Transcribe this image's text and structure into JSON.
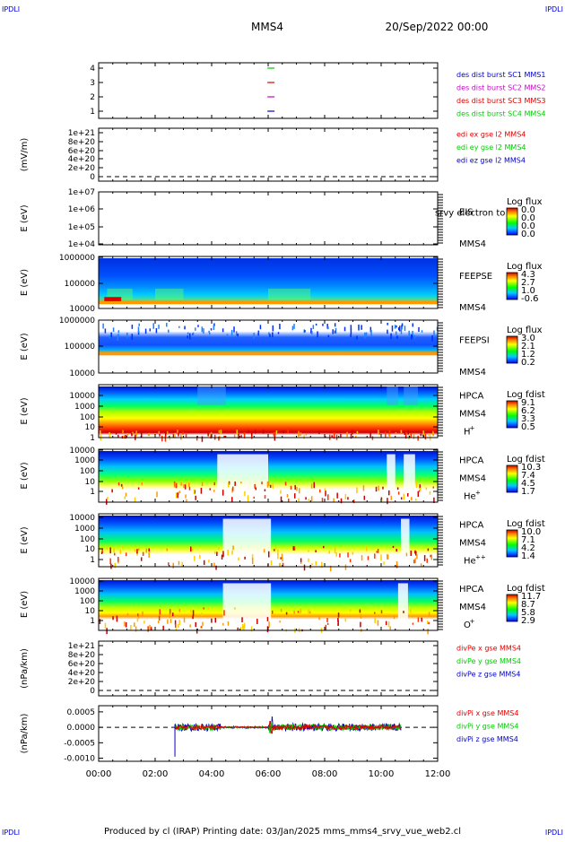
{
  "corner_label": "IPDLI",
  "header": {
    "spacecraft": "MMS4",
    "datetime": "20/Sep/2022 00:00"
  },
  "footer": {
    "text": "Produced by cl (IRAP)   Printing date: 03/Jan/2025   mms_mms4_srvy_vue_web2.cl"
  },
  "time_axis": {
    "ticks": [
      "00:00",
      "02:00",
      "04:00",
      "06:00",
      "08:00",
      "10:00",
      "12:00"
    ],
    "range_hours": [
      0,
      12
    ]
  },
  "colors": {
    "red": "#dd0000",
    "green": "#00cc00",
    "blue": "#0000cc",
    "magenta": "#cc00cc",
    "panel_border": "#000000"
  },
  "chart_data": [
    {
      "id": "burst",
      "type": "line",
      "yticks": [
        "4",
        "3",
        "2",
        "1"
      ],
      "ylabel": "",
      "legend": [
        {
          "text": "des dist burst SC1 MMS1",
          "color": "#0000cc"
        },
        {
          "text": "des dist burst SC2 MMS2",
          "color": "#cc00cc"
        },
        {
          "text": "des dist burst SC3 MMS3",
          "color": "#dd0000"
        },
        {
          "text": "des dist burst SC4 MMS4",
          "color": "#00cc00"
        }
      ],
      "markers": [
        {
          "sc": 4,
          "time_hours": 6.1,
          "color": "#00cc00"
        },
        {
          "sc": 3,
          "time_hours": 6.1,
          "color": "#dd0000"
        },
        {
          "sc": 2,
          "time_hours": 6.1,
          "color": "#cc00cc"
        },
        {
          "sc": 1,
          "time_hours": 6.1,
          "color": "#0000cc"
        }
      ]
    },
    {
      "id": "edi",
      "type": "line",
      "yticks": [
        "1e+21",
        "8e+20",
        "6e+20",
        "4e+20",
        "2e+20",
        "0"
      ],
      "ylabel": "(mV/m)",
      "legend": [
        {
          "text": "edi ex gse l2 MMS4",
          "color": "#dd0000"
        },
        {
          "text": "edi ey gse l2 MMS4",
          "color": "#00cc00"
        },
        {
          "text": "edi ez gse l2 MMS4",
          "color": "#0000cc"
        }
      ],
      "zero_line": true
    },
    {
      "id": "eis",
      "type": "heatmap",
      "yticks": [
        "1e+07",
        "1e+06",
        "1e+05",
        "1e+04"
      ],
      "ylabel": "E (eV)",
      "instrument": "EIS",
      "overlay": "srvy electron to",
      "spacecraft": "MMS4",
      "colorbar": {
        "title": "Log flux",
        "labels": [
          "0.0",
          "0.0",
          "0.0",
          "0.0"
        ]
      }
    },
    {
      "id": "feepse",
      "type": "heatmap",
      "yticks": [
        "1000000",
        "100000",
        "10000"
      ],
      "ylabel": "E (eV)",
      "instrument": "FEEPSE",
      "spacecraft": "MMS4",
      "colorbar": {
        "title": "Log flux",
        "labels": [
          "4.3",
          "2.7",
          "1.0",
          "-0.6"
        ]
      }
    },
    {
      "id": "feepsi",
      "type": "heatmap",
      "yticks": [
        "1000000",
        "100000",
        "10000"
      ],
      "ylabel": "E (eV)",
      "instrument": "FEEPSI",
      "spacecraft": "MMS4",
      "colorbar": {
        "title": "Log flux",
        "labels": [
          "3.0",
          "2.1",
          "1.2",
          "0.2"
        ]
      }
    },
    {
      "id": "hpca_h",
      "type": "heatmap",
      "yticks": [
        "10000",
        "1000",
        "100",
        "10",
        "1"
      ],
      "ylabel": "E (eV)",
      "instrument": "HPCA",
      "spacecraft": "MMS4",
      "species": "H",
      "charge": "+",
      "colorbar": {
        "title": "Log fdist",
        "labels": [
          "9.1",
          "6.2",
          "3.3",
          "0.5"
        ]
      }
    },
    {
      "id": "hpca_he",
      "type": "heatmap",
      "yticks": [
        "10000",
        "1000",
        "100",
        "10",
        "1"
      ],
      "ylabel": "E (eV)",
      "instrument": "HPCA",
      "spacecraft": "MMS4",
      "species": "He",
      "charge": "+",
      "colorbar": {
        "title": "Log fdist",
        "labels": [
          "10.3",
          "7.4",
          "4.5",
          "1.7"
        ]
      }
    },
    {
      "id": "hpca_he2",
      "type": "heatmap",
      "yticks": [
        "10000",
        "1000",
        "100",
        "10",
        "1"
      ],
      "ylabel": "E (eV)",
      "instrument": "HPCA",
      "spacecraft": "MMS4",
      "species": "He",
      "charge": "++",
      "colorbar": {
        "title": "Log fdist",
        "labels": [
          "10.0",
          "7.1",
          "4.2",
          "1.4"
        ]
      }
    },
    {
      "id": "hpca_o",
      "type": "heatmap",
      "yticks": [
        "10000",
        "1000",
        "100",
        "10",
        "1"
      ],
      "ylabel": "E (eV)",
      "instrument": "HPCA",
      "spacecraft": "MMS4",
      "species": "O",
      "charge": "+",
      "colorbar": {
        "title": "Log fdist",
        "labels": [
          "11.7",
          "8.7",
          "5.8",
          "2.9"
        ]
      }
    },
    {
      "id": "divpe",
      "type": "line",
      "yticks": [
        "1e+21",
        "8e+20",
        "6e+20",
        "4e+20",
        "2e+20",
        "0"
      ],
      "ylabel": "(nPa/km)",
      "legend": [
        {
          "text": "divPe x gse MMS4",
          "color": "#dd0000"
        },
        {
          "text": "divPe y gse MMS4",
          "color": "#00cc00"
        },
        {
          "text": "divPe z gse MMS4",
          "color": "#0000cc"
        }
      ],
      "zero_line": true
    },
    {
      "id": "divpi",
      "type": "line",
      "yticks": [
        "0.0005",
        "0.0000",
        "-0.0005",
        "-0.0010"
      ],
      "ylabel": "(nPa/km)",
      "ylim": [
        -0.0011,
        0.0007
      ],
      "legend": [
        {
          "text": "divPi x gse MMS4",
          "color": "#dd0000"
        },
        {
          "text": "divPi y gse MMS4",
          "color": "#00cc00"
        },
        {
          "text": "divPi z gse MMS4",
          "color": "#0000cc"
        }
      ],
      "zero_line": true,
      "data_span_hours": [
        2.7,
        10.7
      ],
      "gap_hours": [
        6.05,
        6.15
      ]
    }
  ]
}
